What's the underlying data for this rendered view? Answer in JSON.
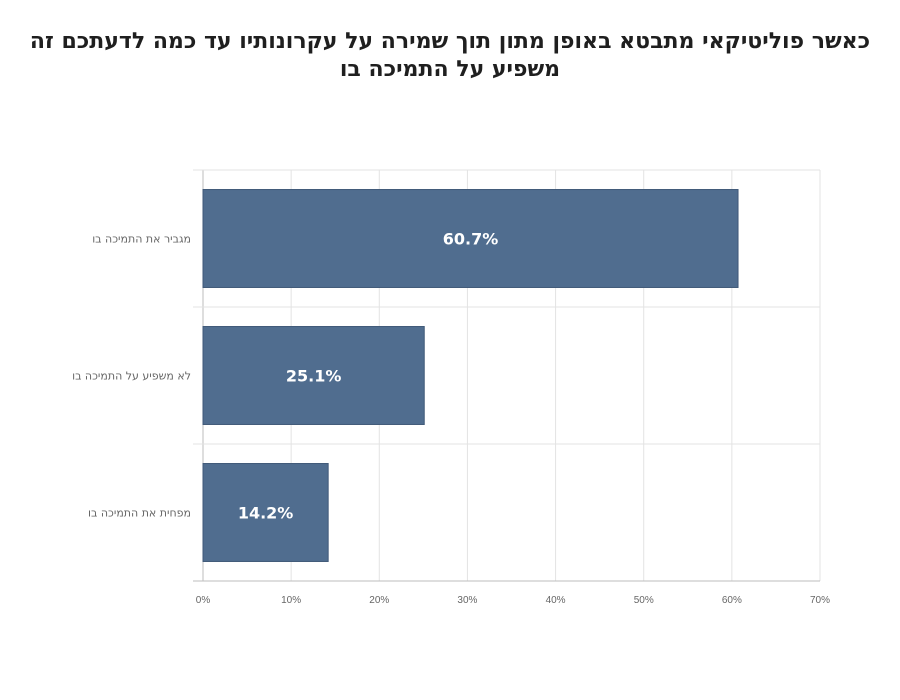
{
  "chart_data": {
    "type": "bar",
    "orientation": "horizontal",
    "title": "כאשר פוליטיקאי מתבטא באופן מתון תוך שמירה על עקרונותיו עד כמה לדעתכם  זה\nמשפיע על התמיכה בו",
    "categories": [
      "מגביר את התמיכה בו",
      "לא משפיע על התמיכה בו",
      "מפחית את התמיכה בו"
    ],
    "values": [
      60.7,
      25.1,
      14.2
    ],
    "data_labels": [
      "60.7%",
      "25.1%",
      "14.2%"
    ],
    "x_ticks": [
      "0%",
      "10%",
      "20%",
      "30%",
      "40%",
      "50%",
      "60%",
      "70%"
    ],
    "xlim": [
      0,
      70
    ],
    "unit": "%",
    "grid": true,
    "legend": "none",
    "bar_color": "#506d8f"
  }
}
